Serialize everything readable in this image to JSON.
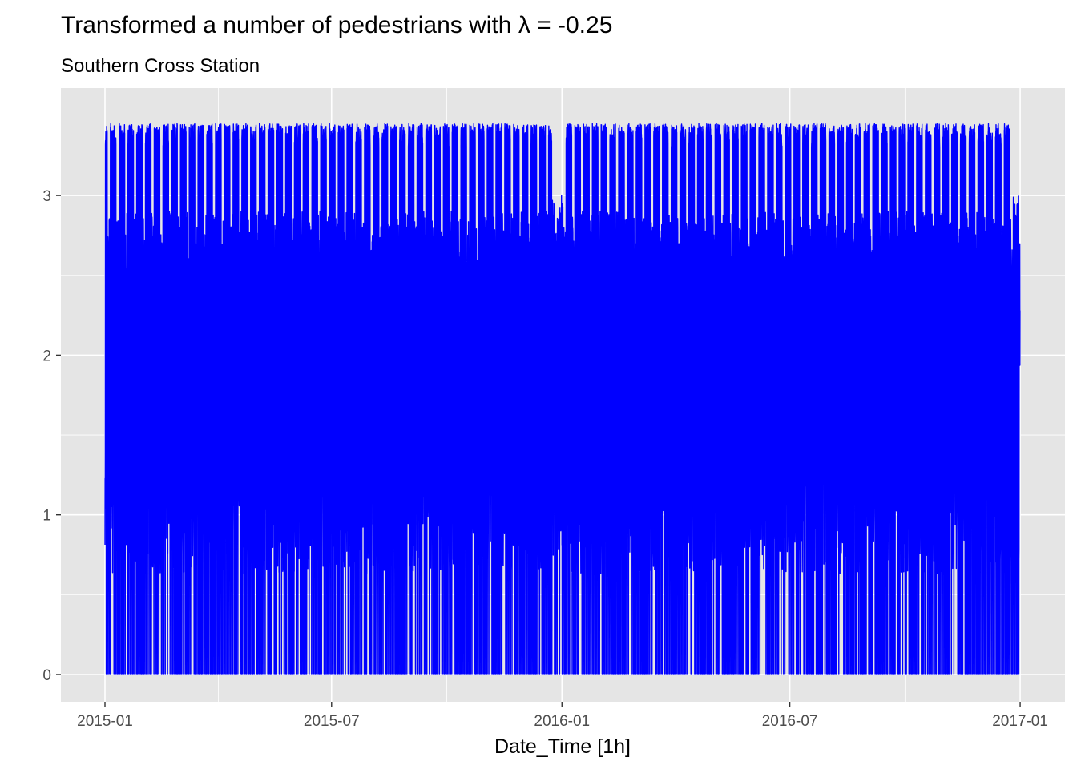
{
  "chart_data": {
    "type": "line",
    "title": "Transformed a number of pedestrians with λ = -0.25",
    "subtitle": "Southern Cross Station",
    "xlabel": "Date_Time [1h]",
    "ylabel": "",
    "x_ticks": [
      "2015-01",
      "2015-07",
      "2016-01",
      "2016-07",
      "2017-01"
    ],
    "y_ticks": [
      0,
      1,
      2,
      3
    ],
    "xlim": [
      "2015-01-01",
      "2016-12-31"
    ],
    "ylim": [
      -0.17,
      3.5
    ],
    "grid": true,
    "legend": "none",
    "series": [
      {
        "name": "",
        "color": "#0000ff",
        "x_start": "2015-01-01 00:00",
        "x_end": "2016-12-31 23:00",
        "frequency": "1h",
        "daily_low": 0,
        "weekday_peak": 3.45,
        "weekend_peak": 2.9,
        "overall_min": 0,
        "overall_max": 3.48,
        "holiday_dip_periods": [
          "2015-12-24 to 2016-01-03",
          "2016-12-24 to 2016-12-31"
        ]
      }
    ],
    "colors": {
      "panel_background": "#e5e5e5",
      "grid": "#ffffff",
      "line": "#0000ff"
    }
  }
}
